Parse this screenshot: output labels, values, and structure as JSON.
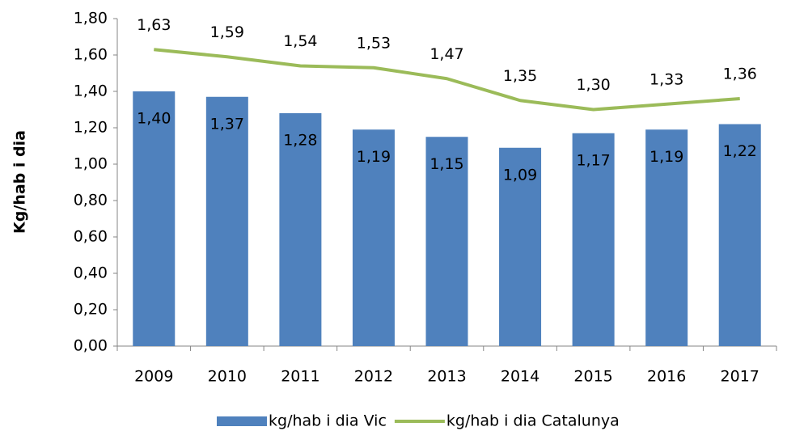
{
  "chart_data": {
    "type": "bar",
    "y_label": "Kg/hab i dia",
    "categories": [
      "2009",
      "2010",
      "2011",
      "2012",
      "2013",
      "2014",
      "2015",
      "2016",
      "2017"
    ],
    "series": [
      {
        "name": "kg/hab i dia Vic",
        "type": "bar",
        "color": "#4f81bd",
        "values": [
          1.4,
          1.37,
          1.28,
          1.19,
          1.15,
          1.09,
          1.17,
          1.19,
          1.22
        ],
        "value_labels": [
          "1,40",
          "1,37",
          "1,28",
          "1,19",
          "1,15",
          "1,09",
          "1,17",
          "1,19",
          "1,22"
        ]
      },
      {
        "name": "kg/hab i dia Catalunya",
        "type": "line",
        "color": "#9bbb59",
        "values": [
          1.63,
          1.59,
          1.54,
          1.53,
          1.47,
          1.35,
          1.3,
          1.33,
          1.36
        ],
        "value_labels": [
          "1,63",
          "1,59",
          "1,54",
          "1,53",
          "1,47",
          "1,35",
          "1,30",
          "1,33",
          "1,36"
        ]
      }
    ],
    "ylim": [
      0,
      1.8
    ],
    "yticks": [
      {
        "value": 0,
        "label": "0,00"
      },
      {
        "value": 0.2,
        "label": "0,20"
      },
      {
        "value": 0.4,
        "label": "0,40"
      },
      {
        "value": 0.6,
        "label": "0,60"
      },
      {
        "value": 0.8,
        "label": "0,80"
      },
      {
        "value": 1.0,
        "label": "1,00"
      },
      {
        "value": 1.2,
        "label": "1,20"
      },
      {
        "value": 1.4,
        "label": "1,40"
      },
      {
        "value": 1.6,
        "label": "1,60"
      },
      {
        "value": 1.8,
        "label": "1,80"
      }
    ],
    "grid": false,
    "legend": "bottom"
  }
}
